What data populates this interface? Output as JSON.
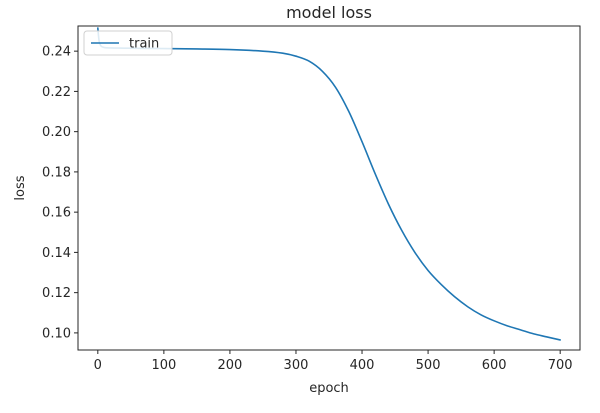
{
  "chart_data": {
    "type": "line",
    "title": "model loss",
    "xlabel": "epoch",
    "ylabel": "loss",
    "xlim": [
      -30,
      730
    ],
    "ylim": [
      0.0915,
      0.2525
    ],
    "xticks": [
      0,
      100,
      200,
      300,
      400,
      500,
      600,
      700
    ],
    "yticks": [
      0.1,
      0.12,
      0.14,
      0.16,
      0.18,
      0.2,
      0.22,
      0.24
    ],
    "xtick_labels": [
      "0",
      "100",
      "200",
      "300",
      "400",
      "500",
      "600",
      "700"
    ],
    "ytick_labels": [
      "0.10",
      "0.12",
      "0.14",
      "0.16",
      "0.18",
      "0.20",
      "0.22",
      "0.24"
    ],
    "grid": false,
    "legend_position": "upper left",
    "series": [
      {
        "name": "train",
        "color": "#1f77b4",
        "x": [
          0,
          2,
          5,
          10,
          20,
          40,
          60,
          100,
          150,
          200,
          250,
          280,
          300,
          320,
          340,
          360,
          380,
          400,
          420,
          440,
          460,
          480,
          500,
          520,
          540,
          560,
          580,
          600,
          620,
          640,
          660,
          680,
          700
        ],
        "y": [
          0.2515,
          0.245,
          0.2425,
          0.2418,
          0.2416,
          0.2415,
          0.2414,
          0.2413,
          0.2411,
          0.2408,
          0.24,
          0.239,
          0.2375,
          0.235,
          0.23,
          0.222,
          0.21,
          0.195,
          0.179,
          0.164,
          0.151,
          0.14,
          0.131,
          0.124,
          0.118,
          0.113,
          0.109,
          0.106,
          0.1035,
          0.1015,
          0.0995,
          0.098,
          0.0965
        ]
      }
    ]
  }
}
